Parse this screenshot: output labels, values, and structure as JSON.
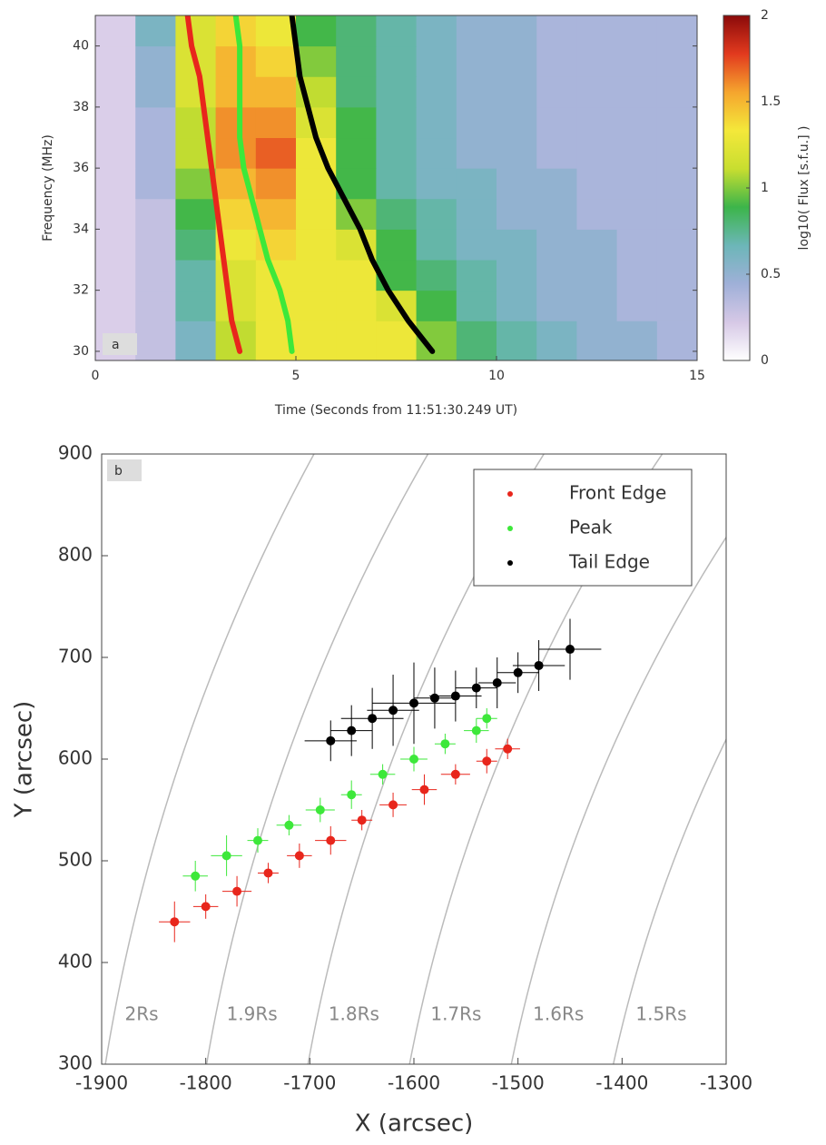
{
  "chart_data": [
    {
      "type": "heatmap",
      "panel_label": "a",
      "x_label": "Time (Seconds from 11:51:30.249 UT)",
      "y_label": "Frequency (MHz)",
      "colorbar_label": "log10( Flux [s.f.u.] )",
      "xlim": [
        0,
        15
      ],
      "xticks": [
        0,
        5,
        10,
        15
      ],
      "ylim": [
        29.7,
        41
      ],
      "yticks": [
        30,
        32,
        34,
        36,
        38,
        40
      ],
      "zlim": [
        0,
        2
      ],
      "zticks": [
        0,
        0.5,
        1,
        1.5,
        2
      ],
      "colormap": [
        "#ffffff",
        "#d6c8e6",
        "#9fb0d8",
        "#6cb6b8",
        "#3cb54a",
        "#c8de30",
        "#f4e83a",
        "#f5a52e",
        "#e23a1e",
        "#8b0a0a"
      ],
      "x_bins": [
        0,
        1,
        2,
        3,
        4,
        5,
        6,
        7,
        8,
        9,
        10,
        11,
        12,
        13,
        14,
        15
      ],
      "y_bins": [
        29.7,
        31,
        32,
        33,
        34,
        35,
        36,
        37,
        38,
        39,
        40,
        41
      ],
      "z": [
        [
          0.2,
          0.3,
          0.6,
          1.1,
          1.3,
          1.3,
          1.3,
          1.3,
          1.0,
          0.8,
          0.7,
          0.6,
          0.5,
          0.5,
          0.4
        ],
        [
          0.2,
          0.3,
          0.7,
          1.2,
          1.3,
          1.3,
          1.3,
          1.2,
          0.9,
          0.7,
          0.6,
          0.5,
          0.5,
          0.4,
          0.4
        ],
        [
          0.2,
          0.3,
          0.7,
          1.2,
          1.3,
          1.3,
          1.3,
          0.9,
          0.8,
          0.7,
          0.6,
          0.5,
          0.5,
          0.4,
          0.4
        ],
        [
          0.2,
          0.3,
          0.8,
          1.3,
          1.4,
          1.3,
          1.2,
          0.9,
          0.7,
          0.6,
          0.6,
          0.5,
          0.5,
          0.4,
          0.4
        ],
        [
          0.2,
          0.3,
          0.9,
          1.4,
          1.5,
          1.3,
          1.0,
          0.8,
          0.7,
          0.6,
          0.5,
          0.5,
          0.4,
          0.4,
          0.4
        ],
        [
          0.2,
          0.4,
          1.0,
          1.5,
          1.6,
          1.3,
          0.9,
          0.7,
          0.6,
          0.6,
          0.5,
          0.5,
          0.4,
          0.4,
          0.4
        ],
        [
          0.2,
          0.4,
          1.1,
          1.6,
          1.7,
          1.3,
          0.9,
          0.7,
          0.6,
          0.5,
          0.5,
          0.4,
          0.4,
          0.4,
          0.4
        ],
        [
          0.2,
          0.4,
          1.1,
          1.6,
          1.6,
          1.2,
          0.9,
          0.7,
          0.6,
          0.5,
          0.5,
          0.4,
          0.4,
          0.4,
          0.4
        ],
        [
          0.2,
          0.5,
          1.2,
          1.5,
          1.5,
          1.1,
          0.8,
          0.7,
          0.6,
          0.5,
          0.5,
          0.4,
          0.4,
          0.4,
          0.4
        ],
        [
          0.2,
          0.5,
          1.2,
          1.5,
          1.4,
          1.0,
          0.8,
          0.7,
          0.6,
          0.5,
          0.5,
          0.4,
          0.4,
          0.4,
          0.4
        ],
        [
          0.2,
          0.6,
          1.2,
          1.4,
          1.3,
          0.9,
          0.8,
          0.7,
          0.6,
          0.5,
          0.5,
          0.4,
          0.4,
          0.4,
          0.4
        ]
      ],
      "series": [
        {
          "color": "#e8261c",
          "x": [
            2.3,
            2.4,
            2.6,
            2.7,
            2.8,
            2.9,
            3.0,
            3.1,
            3.2,
            3.3,
            3.4,
            3.6
          ],
          "values": [
            41,
            40,
            39,
            38,
            37,
            36,
            35,
            34,
            33,
            32,
            31,
            30
          ]
        },
        {
          "color": "#3de83a",
          "x": [
            3.5,
            3.6,
            3.6,
            3.6,
            3.6,
            3.7,
            3.9,
            4.1,
            4.3,
            4.6,
            4.8,
            4.9
          ],
          "values": [
            41,
            40,
            39,
            38,
            37,
            36,
            35,
            34,
            33,
            32,
            31,
            30
          ]
        },
        {
          "color": "#000000",
          "x": [
            4.9,
            5.0,
            5.1,
            5.3,
            5.5,
            5.8,
            6.2,
            6.6,
            6.9,
            7.3,
            7.8,
            8.4
          ],
          "values": [
            41,
            40,
            39,
            38,
            37,
            36,
            35,
            34,
            33,
            32,
            31,
            30
          ]
        }
      ]
    },
    {
      "type": "scatter",
      "panel_label": "b",
      "x_label": "X (arcsec)",
      "y_label": "Y (arcsec)",
      "xlim": [
        -1900,
        -1300
      ],
      "xticks": [
        -1900,
        -1800,
        -1700,
        -1600,
        -1500,
        -1400,
        -1300
      ],
      "ylim": [
        300,
        900
      ],
      "yticks": [
        300,
        400,
        500,
        600,
        700,
        800,
        900
      ],
      "legend": "upper right",
      "contours": [
        {
          "value": 1920,
          "label": "2Rs"
        },
        {
          "value": 1824,
          "label": "1.9Rs"
        },
        {
          "value": 1728,
          "label": "1.8Rs"
        },
        {
          "value": 1632,
          "label": "1.7Rs"
        },
        {
          "value": 1536,
          "label": "1.6Rs"
        },
        {
          "value": 1440,
          "label": "1.5Rs"
        }
      ],
      "series": [
        {
          "name": "Front Edge",
          "color": "#e8261c",
          "x": [
            -1830,
            -1800,
            -1770,
            -1740,
            -1710,
            -1680,
            -1650,
            -1620,
            -1590,
            -1560,
            -1530,
            -1510
          ],
          "values": [
            440,
            455,
            470,
            488,
            505,
            520,
            540,
            555,
            570,
            585,
            598,
            610
          ],
          "xerr": [
            15,
            12,
            14,
            10,
            12,
            15,
            10,
            13,
            12,
            14,
            10,
            12
          ],
          "yerr": [
            20,
            12,
            15,
            10,
            12,
            14,
            10,
            12,
            15,
            10,
            12,
            10
          ]
        },
        {
          "name": "Peak",
          "color": "#3de83a",
          "x": [
            -1810,
            -1780,
            -1750,
            -1720,
            -1690,
            -1660,
            -1630,
            -1600,
            -1570,
            -1540,
            -1530
          ],
          "values": [
            485,
            505,
            520,
            535,
            550,
            565,
            585,
            600,
            615,
            628,
            640
          ],
          "xerr": [
            12,
            15,
            10,
            12,
            14,
            10,
            12,
            13,
            10,
            12,
            10
          ],
          "yerr": [
            15,
            20,
            12,
            10,
            12,
            14,
            10,
            12,
            10,
            12,
            10
          ]
        },
        {
          "name": "Tail Edge",
          "color": "#000000",
          "x": [
            -1680,
            -1660,
            -1640,
            -1620,
            -1600,
            -1580,
            -1560,
            -1540,
            -1520,
            -1500,
            -1480,
            -1450
          ],
          "values": [
            618,
            628,
            640,
            648,
            655,
            660,
            662,
            670,
            675,
            685,
            692,
            708
          ],
          "xerr": [
            25,
            20,
            30,
            25,
            40,
            20,
            25,
            20,
            18,
            20,
            25,
            30
          ],
          "yerr": [
            20,
            25,
            30,
            35,
            40,
            30,
            25,
            20,
            25,
            20,
            25,
            30
          ]
        }
      ]
    }
  ]
}
